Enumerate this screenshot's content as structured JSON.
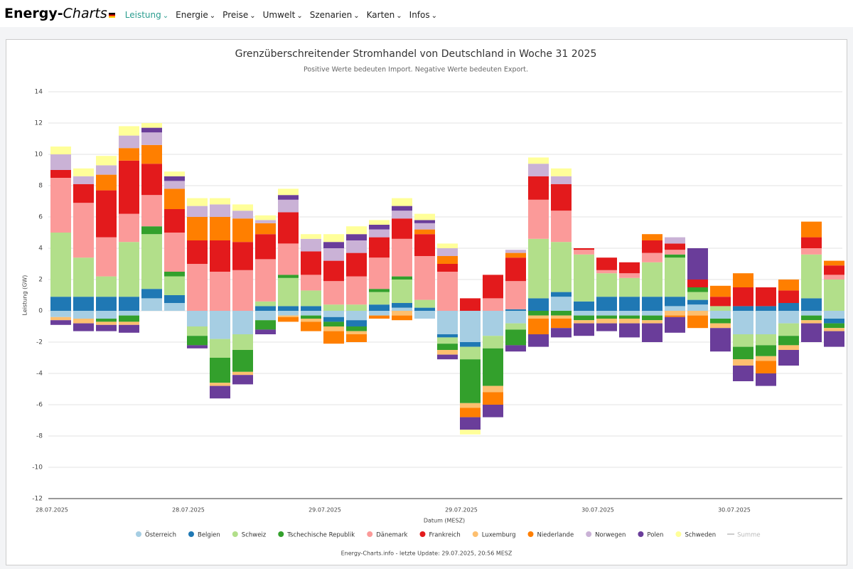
{
  "nav": {
    "logo_main": "Energy-",
    "logo_accent": "Charts",
    "items": [
      "Leistung",
      "Energie",
      "Preise",
      "Umwelt",
      "Szenarien",
      "Karten",
      "Infos"
    ]
  },
  "chart_data": {
    "type": "stacked_bar",
    "title": "Grenzüberschreitender Stromhandel von Deutschland in Woche 31 2025",
    "subtitle": "Positive Werte bedeuten Import. Negative Werte bedeuten Export.",
    "y_label": "Leistung (GW)",
    "x_label": "Datum (MESZ)",
    "footer": "Energy-Charts.info - letzte Update: 29.07.2025, 20:56 MESZ",
    "ylim": [
      -12,
      14
    ],
    "yticks": [
      -12,
      -10,
      -8,
      -6,
      -4,
      -2,
      0,
      2,
      4,
      6,
      8,
      10,
      12,
      14
    ],
    "grid": true,
    "categories": [
      "28.07.2025",
      null,
      null,
      null,
      null,
      null,
      "28.07.2025",
      null,
      null,
      null,
      null,
      null,
      "29.07.2025",
      null,
      null,
      null,
      null,
      null,
      "29.07.2025",
      null,
      null,
      null,
      null,
      null,
      "30.07.2025",
      null,
      null,
      null,
      null,
      null,
      "30.07.2025",
      null,
      null,
      null,
      null
    ],
    "series": [
      {
        "name": "Österreich",
        "color": "#a6cee3",
        "values": [
          -0.4,
          -0.5,
          -0.5,
          -0.3,
          0.8,
          0.5,
          -1,
          -1.8,
          -1.5,
          -0.6,
          -0.3,
          -0.3,
          -0.4,
          -0.6,
          -0.3,
          0.2,
          -0.5,
          -1.5,
          -2,
          -1.6,
          -0.8,
          0,
          0.9,
          -0.3,
          -0.3,
          -0.3,
          -0.3,
          0.3,
          0.4,
          -0.5,
          -1.5,
          -1.5,
          -0.8,
          -0.3,
          -0.5
        ]
      },
      {
        "name": "Belgien",
        "color": "#1f78b4",
        "values": [
          0.9,
          0.9,
          0.9,
          0.9,
          0.6,
          0.5,
          0,
          0,
          0,
          0.3,
          0.3,
          0.3,
          -0.3,
          -0.4,
          0.4,
          0.3,
          0.2,
          -0.2,
          -0.3,
          0,
          0.1,
          0.8,
          0.3,
          0.6,
          0.9,
          0.9,
          0.9,
          0.6,
          0.3,
          0,
          0.3,
          0.3,
          0.5,
          0.8,
          -0.3
        ]
      },
      {
        "name": "Schweiz",
        "color": "#b2df8a",
        "values": [
          4.1,
          2.5,
          1.3,
          3.5,
          3.5,
          1.2,
          -0.6,
          -1.2,
          -1,
          0.3,
          1.8,
          1,
          0.4,
          0.4,
          0.8,
          1.5,
          0.5,
          -0.4,
          -0.8,
          -0.8,
          -0.4,
          3.8,
          3.2,
          3,
          1.5,
          1.2,
          2.2,
          2.5,
          0.5,
          0.3,
          -0.8,
          -0.7,
          -0.8,
          2.8,
          2
        ]
      },
      {
        "name": "Tschechische Republik",
        "color": "#33a02c",
        "values": [
          0,
          0,
          -0.2,
          -0.4,
          0.5,
          0.3,
          -0.6,
          -1.6,
          -1.4,
          -0.6,
          0.2,
          -0.2,
          -0.3,
          -0.3,
          0.2,
          0.2,
          0,
          -0.4,
          -2.8,
          -2.4,
          -1,
          -0.3,
          -0.3,
          -0.3,
          -0.2,
          -0.2,
          -0.3,
          0.2,
          0.3,
          -0.3,
          -0.8,
          -0.7,
          -0.6,
          -0.3,
          -0.3
        ]
      },
      {
        "name": "Dänemark",
        "color": "#fb9a99",
        "values": [
          3.5,
          3.5,
          2.5,
          1.8,
          2,
          2.5,
          3,
          2.5,
          2.6,
          2.7,
          2,
          1,
          1.5,
          1.8,
          2,
          2.4,
          2.8,
          2.5,
          0,
          0.8,
          1.8,
          2.5,
          2,
          0.3,
          0.2,
          0.3,
          0.6,
          0.3,
          0,
          0,
          0,
          0,
          0,
          0.4,
          0.3
        ]
      },
      {
        "name": "Frankreich",
        "color": "#e31a1c",
        "values": [
          0.5,
          1.2,
          3,
          3.4,
          2,
          1.5,
          1.5,
          2,
          1.8,
          1.6,
          2,
          1.5,
          1.3,
          1.5,
          1.3,
          1.3,
          1.4,
          0.5,
          0.8,
          1.5,
          1.5,
          1.5,
          1.7,
          0.1,
          0.8,
          0.7,
          0.8,
          0.4,
          0.5,
          0.6,
          1.2,
          1.2,
          0.8,
          0.7,
          0.6
        ]
      },
      {
        "name": "Luxemburg",
        "color": "#fdbf6f",
        "values": [
          -0.2,
          -0.3,
          -0.2,
          -0.2,
          0,
          0,
          0,
          -0.2,
          -0.2,
          0,
          -0.1,
          -0.2,
          -0.3,
          -0.2,
          0,
          -0.3,
          0,
          -0.3,
          -0.3,
          -0.4,
          0,
          -0.2,
          -0.2,
          -0.2,
          -0.3,
          -0.3,
          -0.2,
          -0.3,
          -0.3,
          -0.3,
          -0.4,
          -0.3,
          -0.3,
          -0.2,
          -0.2
        ]
      },
      {
        "name": "Niederlande",
        "color": "#ff7f00",
        "values": [
          0,
          0,
          1,
          0.8,
          1.2,
          1.3,
          1.5,
          1.5,
          1.5,
          0.7,
          -0.3,
          -0.6,
          -0.8,
          -0.5,
          -0.2,
          -0.3,
          0.3,
          0.5,
          -0.6,
          -0.8,
          0.3,
          -1,
          -0.6,
          0,
          0,
          0,
          0.4,
          -0.1,
          -0.8,
          0.7,
          0.9,
          -0.8,
          0.7,
          1,
          0.3
        ]
      },
      {
        "name": "Norwegen",
        "color": "#cab2d6",
        "values": [
          1,
          0.5,
          0.6,
          0.8,
          0.8,
          0.5,
          0.7,
          0.8,
          0.5,
          0.2,
          0.8,
          0.8,
          0.8,
          0.8,
          0.5,
          0.5,
          0.4,
          0.5,
          0,
          0,
          0.2,
          0.8,
          0.5,
          0,
          0,
          0,
          0,
          0.4,
          0,
          0,
          0,
          0,
          0,
          0,
          0
        ]
      },
      {
        "name": "Polen",
        "color": "#6a3d9a",
        "values": [
          -0.3,
          -0.5,
          -0.4,
          -0.5,
          0.3,
          0.3,
          -0.2,
          -0.8,
          -0.6,
          -0.3,
          0.3,
          0,
          0.4,
          0.4,
          0.3,
          0.3,
          0.2,
          -0.3,
          -0.8,
          -0.8,
          -0.4,
          -0.8,
          -0.6,
          -0.8,
          -0.5,
          -0.9,
          -1.2,
          -1,
          2,
          -1.5,
          -1,
          -0.8,
          -1,
          -1.2,
          -1
        ]
      },
      {
        "name": "Schweden",
        "color": "#ffff99",
        "values": [
          0.5,
          0.5,
          0.6,
          0.6,
          0.3,
          0.3,
          0.5,
          0.4,
          0.4,
          0.3,
          0.4,
          0.3,
          0.5,
          0.5,
          0.3,
          0.5,
          0.4,
          0.3,
          -0.3,
          0,
          0,
          0.4,
          0.5,
          0,
          0,
          0,
          0,
          0,
          0,
          0,
          0,
          0,
          0,
          0,
          0
        ]
      }
    ],
    "hidden_legend": [
      "Summe"
    ]
  }
}
